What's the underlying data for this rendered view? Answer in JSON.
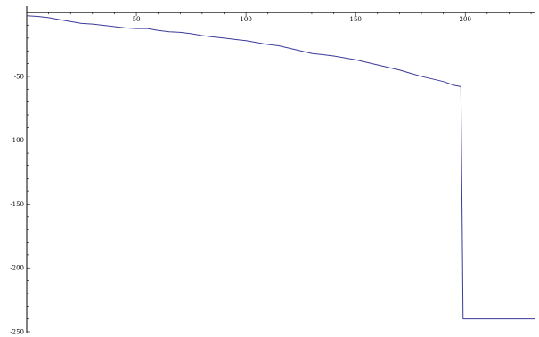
{
  "colors": {
    "series": "#3a3a9a",
    "axis": "#000000"
  },
  "chart_data": {
    "type": "line",
    "title": "",
    "xlabel": "",
    "ylabel": "",
    "xlim": [
      0,
      232
    ],
    "ylim": [
      -250,
      5
    ],
    "grid": false,
    "legend": "none",
    "x_ticks": [
      {
        "value": 50,
        "label": "50"
      },
      {
        "value": 100,
        "label": "100"
      },
      {
        "value": 150,
        "label": "150"
      },
      {
        "value": 200,
        "label": "200"
      }
    ],
    "y_ticks": [
      {
        "value": -50,
        "label": "-50"
      },
      {
        "value": -100,
        "label": "-100"
      },
      {
        "value": -150,
        "label": "-150"
      },
      {
        "value": -200,
        "label": "-200"
      },
      {
        "value": -250,
        "label": "-250"
      }
    ],
    "series": [
      {
        "points": [
          [
            0,
            -2.5
          ],
          [
            5,
            -3
          ],
          [
            10,
            -4
          ],
          [
            15,
            -5.5
          ],
          [
            20,
            -7
          ],
          [
            25,
            -8.5
          ],
          [
            30,
            -9
          ],
          [
            35,
            -10
          ],
          [
            40,
            -11
          ],
          [
            45,
            -12
          ],
          [
            50,
            -12.5
          ],
          [
            55,
            -12.5
          ],
          [
            60,
            -14
          ],
          [
            65,
            -15
          ],
          [
            70,
            -15.5
          ],
          [
            75,
            -16.5
          ],
          [
            80,
            -18
          ],
          [
            85,
            -19
          ],
          [
            90,
            -20
          ],
          [
            95,
            -21
          ],
          [
            100,
            -22
          ],
          [
            105,
            -23.5
          ],
          [
            110,
            -25
          ],
          [
            115,
            -26
          ],
          [
            120,
            -28
          ],
          [
            125,
            -30
          ],
          [
            130,
            -32
          ],
          [
            135,
            -33
          ],
          [
            140,
            -34
          ],
          [
            145,
            -35.5
          ],
          [
            150,
            -37
          ],
          [
            155,
            -39
          ],
          [
            160,
            -41
          ],
          [
            165,
            -43
          ],
          [
            170,
            -45
          ],
          [
            175,
            -47.5
          ],
          [
            180,
            -50
          ],
          [
            185,
            -52
          ],
          [
            190,
            -54
          ],
          [
            195,
            -57
          ],
          [
            198,
            -58
          ],
          [
            199,
            -240
          ],
          [
            232,
            -240
          ]
        ]
      }
    ]
  }
}
